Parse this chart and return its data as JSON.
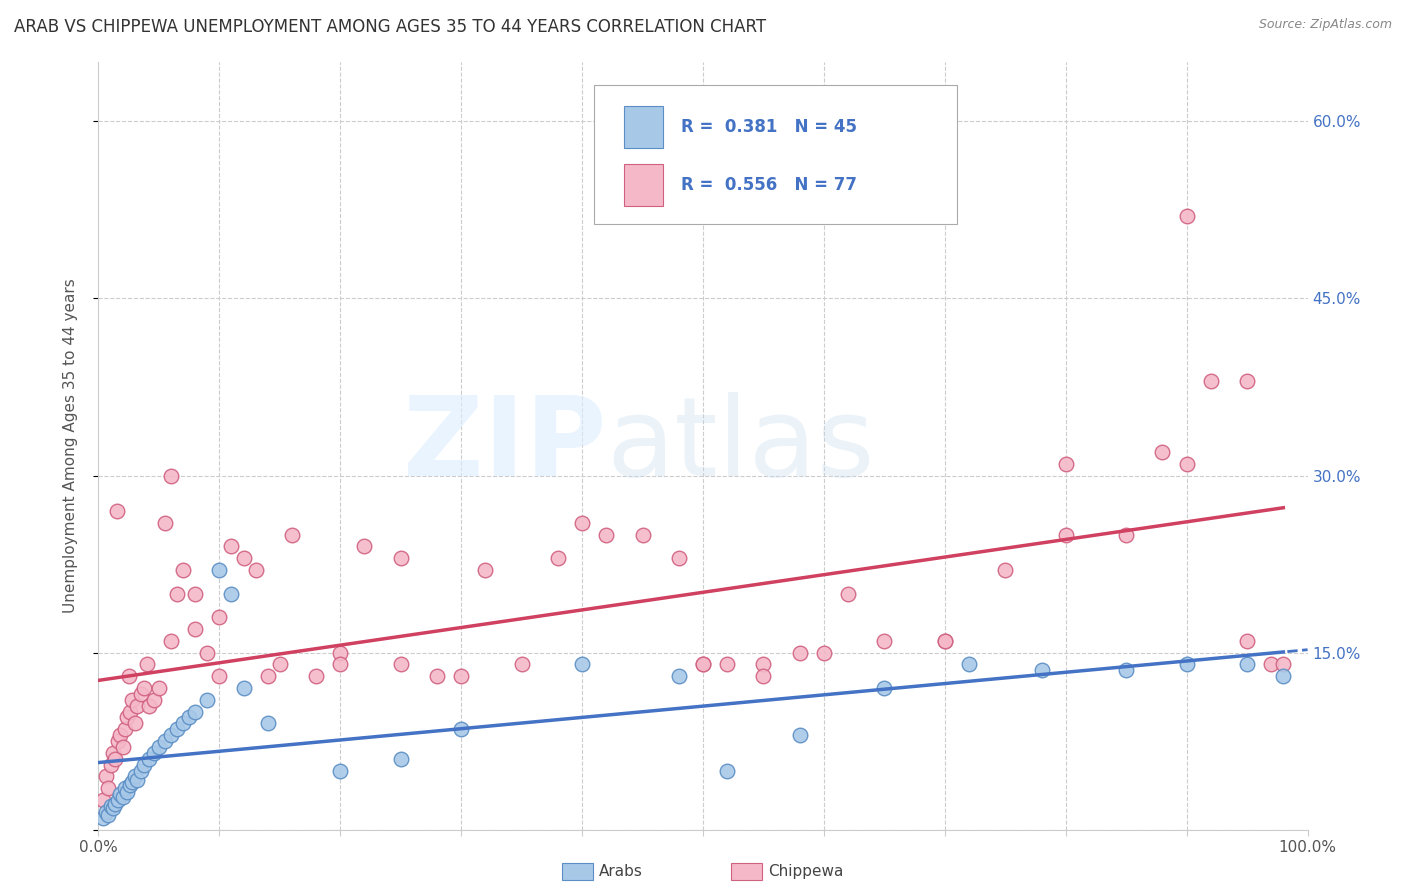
{
  "title": "ARAB VS CHIPPEWA UNEMPLOYMENT AMONG AGES 35 TO 44 YEARS CORRELATION CHART",
  "source": "Source: ZipAtlas.com",
  "ylabel": "Unemployment Among Ages 35 to 44 years",
  "xlim": [
    0,
    1.0
  ],
  "ylim": [
    0,
    0.65
  ],
  "xticklabels": [
    "0.0%",
    "",
    "",
    "",
    "",
    "",
    "",
    "",
    "",
    "",
    "100.0%"
  ],
  "ytick_positions": [
    0.0,
    0.15,
    0.3,
    0.45,
    0.6
  ],
  "yticklabels": [
    "",
    "15.0%",
    "30.0%",
    "45.0%",
    "60.0%"
  ],
  "arab_color": "#a8c8e8",
  "arab_edge_color": "#5b8ec4",
  "chippewa_color": "#f4b8c8",
  "chippewa_edge_color": "#d06080",
  "arab_R": 0.381,
  "arab_N": 45,
  "chippewa_R": 0.556,
  "chippewa_N": 77,
  "legend_text_color": "#4472c4",
  "trend_arab_color": "#4472c4",
  "trend_chippewa_color": "#d04060",
  "arab_x": [
    0.004,
    0.006,
    0.008,
    0.01,
    0.012,
    0.014,
    0.016,
    0.018,
    0.02,
    0.022,
    0.024,
    0.026,
    0.028,
    0.03,
    0.032,
    0.035,
    0.038,
    0.042,
    0.046,
    0.05,
    0.055,
    0.06,
    0.065,
    0.07,
    0.075,
    0.08,
    0.09,
    0.1,
    0.11,
    0.12,
    0.14,
    0.2,
    0.25,
    0.3,
    0.4,
    0.48,
    0.52,
    0.58,
    0.65,
    0.72,
    0.78,
    0.85,
    0.9,
    0.95,
    0.98
  ],
  "arab_y": [
    0.01,
    0.015,
    0.012,
    0.02,
    0.018,
    0.022,
    0.025,
    0.03,
    0.028,
    0.035,
    0.032,
    0.038,
    0.04,
    0.045,
    0.042,
    0.05,
    0.055,
    0.06,
    0.065,
    0.07,
    0.075,
    0.08,
    0.085,
    0.09,
    0.095,
    0.1,
    0.11,
    0.22,
    0.2,
    0.12,
    0.09,
    0.05,
    0.06,
    0.085,
    0.14,
    0.13,
    0.05,
    0.08,
    0.12,
    0.14,
    0.135,
    0.135,
    0.14,
    0.14,
    0.13
  ],
  "chippewa_x": [
    0.004,
    0.006,
    0.008,
    0.01,
    0.012,
    0.014,
    0.016,
    0.018,
    0.02,
    0.022,
    0.024,
    0.026,
    0.028,
    0.03,
    0.032,
    0.035,
    0.038,
    0.042,
    0.046,
    0.05,
    0.055,
    0.06,
    0.065,
    0.07,
    0.08,
    0.09,
    0.1,
    0.11,
    0.12,
    0.13,
    0.14,
    0.16,
    0.18,
    0.2,
    0.22,
    0.25,
    0.28,
    0.32,
    0.38,
    0.42,
    0.48,
    0.52,
    0.55,
    0.58,
    0.62,
    0.65,
    0.7,
    0.75,
    0.8,
    0.85,
    0.88,
    0.9,
    0.92,
    0.95,
    0.97,
    0.98,
    0.015,
    0.025,
    0.04,
    0.06,
    0.08,
    0.1,
    0.15,
    0.2,
    0.25,
    0.3,
    0.35,
    0.4,
    0.45,
    0.5,
    0.6,
    0.7,
    0.8,
    0.9,
    0.95,
    0.5,
    0.55
  ],
  "chippewa_y": [
    0.025,
    0.045,
    0.035,
    0.055,
    0.065,
    0.06,
    0.075,
    0.08,
    0.07,
    0.085,
    0.095,
    0.1,
    0.11,
    0.09,
    0.105,
    0.115,
    0.12,
    0.105,
    0.11,
    0.12,
    0.26,
    0.3,
    0.2,
    0.22,
    0.17,
    0.15,
    0.13,
    0.24,
    0.23,
    0.22,
    0.13,
    0.25,
    0.13,
    0.15,
    0.24,
    0.23,
    0.13,
    0.22,
    0.23,
    0.25,
    0.23,
    0.14,
    0.14,
    0.15,
    0.2,
    0.16,
    0.16,
    0.22,
    0.25,
    0.25,
    0.32,
    0.31,
    0.38,
    0.16,
    0.14,
    0.14,
    0.27,
    0.13,
    0.14,
    0.16,
    0.2,
    0.18,
    0.14,
    0.14,
    0.14,
    0.13,
    0.14,
    0.26,
    0.25,
    0.14,
    0.15,
    0.16,
    0.31,
    0.52,
    0.38,
    0.14,
    0.13
  ]
}
